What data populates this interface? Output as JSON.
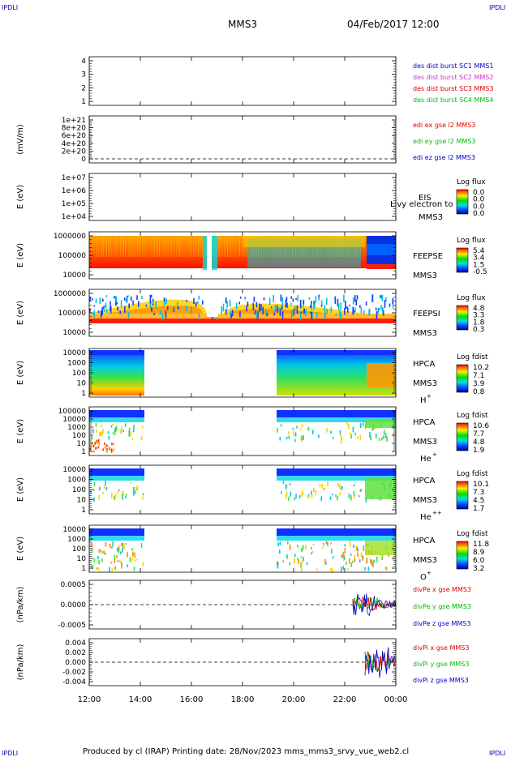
{
  "header": {
    "corner_tl": "IPDLI",
    "corner_tr": "IPDLI",
    "corner_bl": "IPDLI",
    "corner_br": "IPDLI",
    "mission": "MMS3",
    "datetime": "04/Feb/2017 12:00"
  },
  "footer": {
    "text": "Produced by cl (IRAP)    Printing date: 28/Nov/2023    mms_mms3_srvy_vue_web2.cl"
  },
  "chart_data": [
    {
      "type": "line",
      "panel": "des-dist-burst",
      "ylabel": "",
      "y_ticks": [
        "1",
        "2",
        "3",
        "4"
      ],
      "ylim": [
        0.7,
        4.3
      ],
      "legend": [
        {
          "text": "des dist burst SC1 MMS1",
          "color": "#0000cc"
        },
        {
          "text": "des dist burst SC2 MMS2",
          "color": "#cc33cc"
        },
        {
          "text": "des dist burst SC3 MMS3",
          "color": "#dd0000"
        },
        {
          "text": "des dist burst SC4 MMS4",
          "color": "#00bb00"
        }
      ]
    },
    {
      "type": "line",
      "panel": "edi-e-field",
      "ylabel": "(mV/m)",
      "y_ticks": [
        "0",
        "2e+20",
        "4e+20",
        "6e+20",
        "8e+20",
        "1e+21"
      ],
      "ylim": [
        -0.1,
        1.1
      ],
      "legend": [
        {
          "text": "edi ex gse l2 MMS3",
          "color": "#dd0000"
        },
        {
          "text": "edi ey gse l2 MMS3",
          "color": "#00bb00"
        },
        {
          "text": "edi ez gse l2 MMS3",
          "color": "#0000cc"
        }
      ]
    },
    {
      "type": "heatmap",
      "panel": "eis",
      "ylabel": "E (eV)",
      "y_ticks": [
        "1e+04",
        "1e+05",
        "1e+06",
        "1e+07"
      ],
      "label_lines": [
        "EIS",
        "MMS3"
      ],
      "overlay_text": "Livy electron to",
      "colorbar_title": "Log flux",
      "colorbar_ticks": [
        "0.0",
        "0.0",
        "0.0",
        "0.0"
      ]
    },
    {
      "type": "heatmap",
      "panel": "feeps-electron",
      "ylabel": "E (eV)",
      "y_ticks": [
        "10000",
        "100000",
        "1000000"
      ],
      "label_lines": [
        "FEEPSE",
        "MMS3"
      ],
      "colorbar_title": "Log flux",
      "colorbar_ticks": [
        "5.4",
        "3.4",
        "1.5",
        "-0.5"
      ]
    },
    {
      "type": "heatmap",
      "panel": "feeps-ion",
      "ylabel": "E (eV)",
      "y_ticks": [
        "10000",
        "100000",
        "1000000"
      ],
      "label_lines": [
        "FEEPSI",
        "MMS3"
      ],
      "colorbar_title": "Log flux",
      "colorbar_ticks": [
        "4.8",
        "3.3",
        "1.8",
        "0.3"
      ]
    },
    {
      "type": "heatmap",
      "panel": "hpca-h",
      "ylabel": "E (eV)",
      "y_ticks": [
        "1",
        "10",
        "100",
        "1000",
        "10000"
      ],
      "label_lines": [
        "HPCA",
        "MMS3"
      ],
      "species": "H",
      "species_sup": "+",
      "colorbar_title": "Log fdist",
      "colorbar_ticks": [
        "10.2",
        "7.1",
        "3.9",
        "0.8"
      ]
    },
    {
      "type": "heatmap",
      "panel": "hpca-he",
      "ylabel": "E (eV)",
      "y_ticks": [
        "1",
        "10",
        "100",
        "1000",
        "10000",
        "100000"
      ],
      "label_lines": [
        "HPCA",
        "MMS3"
      ],
      "species": "He",
      "species_sup": "+",
      "colorbar_title": "Log fdist",
      "colorbar_ticks": [
        "10.6",
        "7.7",
        "4.8",
        "1.9"
      ]
    },
    {
      "type": "heatmap",
      "panel": "hpca-he2",
      "ylabel": "E (eV)",
      "y_ticks": [
        "1",
        "10",
        "100",
        "1000",
        "10000"
      ],
      "label_lines": [
        "HPCA",
        "MMS3"
      ],
      "species": "He",
      "species_sup": "++",
      "colorbar_title": "Log fdist",
      "colorbar_ticks": [
        "10.1",
        "7.3",
        "4.5",
        "1.7"
      ]
    },
    {
      "type": "heatmap",
      "panel": "hpca-o",
      "ylabel": "E (eV)",
      "y_ticks": [
        "1",
        "10",
        "100",
        "1000",
        "10000"
      ],
      "label_lines": [
        "HPCA",
        "MMS3"
      ],
      "species": "O",
      "species_sup": "+",
      "colorbar_title": "Log fdist",
      "colorbar_ticks": [
        "11.8",
        "8.9",
        "6.0",
        "3.2"
      ]
    },
    {
      "type": "line",
      "panel": "divpe",
      "ylabel": "(nPa/km)",
      "y_ticks": [
        "-0.0005",
        "0.0000",
        "0.0005"
      ],
      "ylim": [
        -0.00085,
        0.00085
      ],
      "legend": [
        {
          "text": "divPe x gse MMS3",
          "color": "#dd0000"
        },
        {
          "text": "divPe y gse MMS3",
          "color": "#00bb00"
        },
        {
          "text": "divPe z gse MMS3",
          "color": "#0000cc"
        }
      ]
    },
    {
      "type": "line",
      "panel": "divpi",
      "ylabel": "(nPa/km)",
      "y_ticks": [
        "-0.004",
        "-0.002",
        "0.000",
        "0.002",
        "0.004"
      ],
      "ylim": [
        -0.0052,
        0.0052
      ],
      "legend": [
        {
          "text": "divPi x gse MMS3",
          "color": "#dd0000"
        },
        {
          "text": "divPi y gse MMS3",
          "color": "#00bb00"
        },
        {
          "text": "divPi z gse MMS3",
          "color": "#0000cc"
        }
      ]
    }
  ],
  "x_axis": {
    "ticks": [
      "12:00",
      "14:00",
      "16:00",
      "18:00",
      "20:00",
      "22:00",
      "00:00"
    ]
  }
}
